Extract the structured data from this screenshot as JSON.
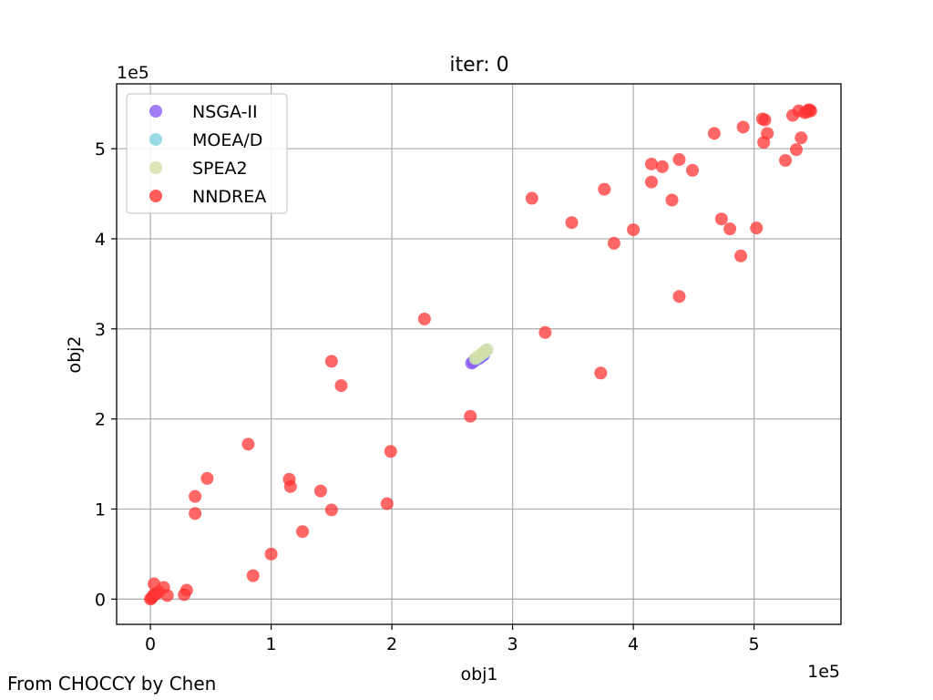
{
  "credit": "From CHOCCY by Chen",
  "chart_data": {
    "type": "scatter",
    "title": "iter: 0",
    "xlabel": "obj1",
    "ylabel": "obj2",
    "x_multiplier_label": "1e5",
    "y_multiplier_label": "1e5",
    "xlim": [
      -0.28,
      5.72
    ],
    "ylim": [
      -0.28,
      5.72
    ],
    "x_ticks": [
      0,
      1,
      2,
      3,
      4,
      5
    ],
    "y_ticks": [
      0,
      1,
      2,
      3,
      4,
      5
    ],
    "grid": true,
    "legend_position": "top-left",
    "series": [
      {
        "name": "NSGA-II",
        "color": "#8B5CF6",
        "points": [
          [
            2.66,
            2.62
          ],
          [
            2.67,
            2.63
          ],
          [
            2.68,
            2.64
          ],
          [
            2.69,
            2.65
          ],
          [
            2.7,
            2.66
          ],
          [
            2.72,
            2.67
          ],
          [
            2.73,
            2.68
          ],
          [
            2.75,
            2.7
          ],
          [
            2.76,
            2.71
          ]
        ]
      },
      {
        "name": "MOEA/D",
        "color": "#7FD3E0",
        "points": [
          [
            2.7,
            2.67
          ],
          [
            2.72,
            2.69
          ],
          [
            2.74,
            2.71
          ],
          [
            2.76,
            2.73
          ],
          [
            2.78,
            2.76
          ]
        ]
      },
      {
        "name": "SPEA2",
        "color": "#D4E0A8",
        "points": [
          [
            2.69,
            2.67
          ],
          [
            2.71,
            2.69
          ],
          [
            2.73,
            2.71
          ],
          [
            2.75,
            2.73
          ],
          [
            2.77,
            2.75
          ],
          [
            2.79,
            2.77
          ]
        ]
      },
      {
        "name": "NNDREA",
        "color": "#FF3333",
        "points": [
          [
            0.0,
            0.0
          ],
          [
            0.01,
            0.01
          ],
          [
            0.02,
            0.03
          ],
          [
            0.03,
            0.05
          ],
          [
            0.03,
            0.17
          ],
          [
            0.05,
            0.06
          ],
          [
            0.07,
            0.08
          ],
          [
            0.11,
            0.13
          ],
          [
            0.14,
            0.04
          ],
          [
            0.28,
            0.05
          ],
          [
            0.3,
            0.1
          ],
          [
            0.37,
            1.14
          ],
          [
            0.37,
            0.95
          ],
          [
            0.47,
            1.34
          ],
          [
            0.81,
            1.72
          ],
          [
            0.85,
            0.26
          ],
          [
            1.0,
            0.5
          ],
          [
            1.15,
            1.33
          ],
          [
            1.16,
            1.25
          ],
          [
            1.26,
            0.75
          ],
          [
            1.41,
            1.2
          ],
          [
            1.5,
            2.64
          ],
          [
            1.5,
            0.99
          ],
          [
            1.58,
            2.37
          ],
          [
            1.96,
            1.06
          ],
          [
            1.99,
            1.64
          ],
          [
            2.27,
            3.11
          ],
          [
            2.65,
            2.03
          ],
          [
            3.16,
            4.45
          ],
          [
            3.27,
            2.96
          ],
          [
            3.49,
            4.18
          ],
          [
            3.73,
            2.51
          ],
          [
            3.76,
            4.55
          ],
          [
            3.84,
            3.95
          ],
          [
            4.0,
            4.1
          ],
          [
            4.15,
            4.83
          ],
          [
            4.15,
            4.63
          ],
          [
            4.24,
            4.8
          ],
          [
            4.32,
            4.43
          ],
          [
            4.38,
            4.88
          ],
          [
            4.38,
            3.36
          ],
          [
            4.49,
            4.76
          ],
          [
            4.67,
            5.17
          ],
          [
            4.73,
            4.22
          ],
          [
            4.8,
            4.11
          ],
          [
            4.89,
            3.81
          ],
          [
            4.91,
            5.24
          ],
          [
            5.02,
            4.12
          ],
          [
            5.07,
            5.33
          ],
          [
            5.09,
            5.32
          ],
          [
            5.08,
            5.07
          ],
          [
            5.11,
            5.17
          ],
          [
            5.26,
            4.87
          ],
          [
            5.32,
            5.37
          ],
          [
            5.35,
            4.99
          ],
          [
            5.37,
            5.42
          ],
          [
            5.39,
            5.12
          ],
          [
            5.42,
            5.4
          ],
          [
            5.44,
            5.41
          ],
          [
            5.45,
            5.43
          ],
          [
            5.46,
            5.43
          ],
          [
            5.47,
            5.42
          ]
        ]
      }
    ]
  }
}
